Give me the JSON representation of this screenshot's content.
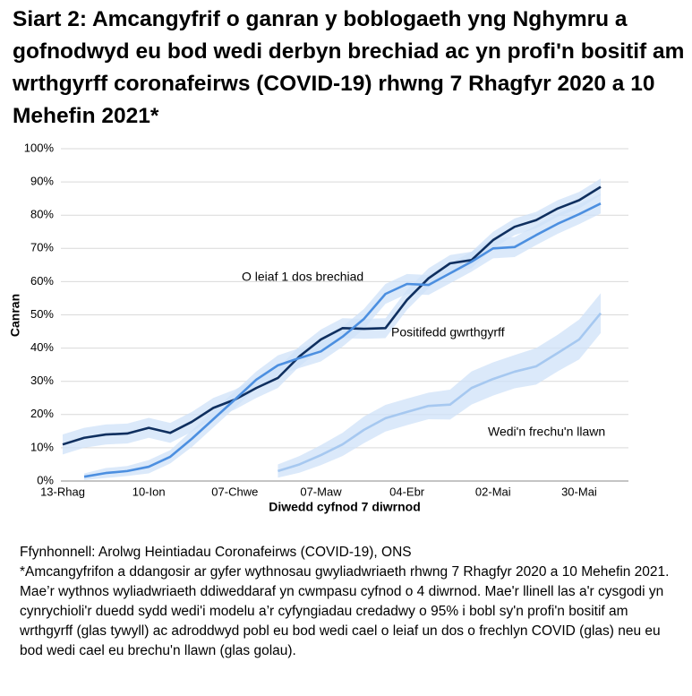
{
  "chart_data": {
    "type": "line",
    "title": "Siart 2: Amcangyfrif o ganran y boblogaeth yng Nghymru a gofnodwyd eu bod wedi derbyn brechiad ac yn profi'n bositif am wrthgyrff coronafeirws (COVID-19) rhwng 7 Rhagfyr 2020 a 10 Mehefin 2021*",
    "x_label": "Diwedd cyfnod 7 diwrnod",
    "y_label": "Canran",
    "categories": [
      "13-Rhag",
      null,
      null,
      null,
      "10-Ion",
      null,
      null,
      null,
      "07-Chwe",
      null,
      null,
      null,
      "07-Maw",
      null,
      null,
      null,
      "04-Ebr",
      null,
      null,
      null,
      "02-Mai",
      null,
      null,
      null,
      "30-Mai",
      null
    ],
    "series": [
      {
        "name": "Positifedd gwrthgyrff",
        "color": "#0f2f5f",
        "values": [
          11,
          13,
          14,
          14.3,
          16,
          14.5,
          17.8,
          22,
          24.5,
          28,
          31,
          37.5,
          42.6,
          46,
          45.8,
          46,
          54.5,
          61,
          65.5,
          66.5,
          72.5,
          76.5,
          78.5,
          82,
          84.5,
          88.5
        ],
        "ci": [
          3,
          3,
          3,
          3,
          3,
          3,
          3,
          3,
          3,
          3,
          3,
          3,
          3,
          3,
          3,
          3,
          3,
          3,
          2.5,
          2.5,
          2.5,
          2.5,
          2.5,
          2.5,
          2.5,
          2.5
        ]
      },
      {
        "name": "O leiaf 1 dos brechiad",
        "color": "#4c8fe0",
        "values": [
          null,
          1.3,
          2.4,
          3,
          4.3,
          7.3,
          12.7,
          18.6,
          24.5,
          30.5,
          34.8,
          37,
          39,
          43.4,
          48.8,
          56.3,
          59.3,
          59,
          62.5,
          66,
          70,
          70.4,
          74,
          77.4,
          80.3,
          83.5
        ],
        "ci": [
          null,
          1,
          1.5,
          1.5,
          2,
          2,
          2.5,
          2.5,
          2.5,
          2.5,
          3,
          3,
          3,
          3,
          3,
          3,
          3,
          3,
          3,
          3,
          3,
          3,
          3,
          3,
          3,
          3
        ]
      },
      {
        "name": "Wedi'n frechu'n llawn",
        "color": "#a6c8f0",
        "values": [
          null,
          null,
          null,
          null,
          null,
          null,
          null,
          null,
          null,
          null,
          3,
          5,
          7.8,
          11,
          15.4,
          18.9,
          20.8,
          22.6,
          23,
          28,
          30.7,
          32.9,
          34.5,
          38.5,
          42.6,
          50.5
        ],
        "ci": [
          null,
          null,
          null,
          null,
          null,
          null,
          null,
          null,
          null,
          null,
          2,
          2.5,
          3,
          3.5,
          4,
          4,
          4,
          4,
          4.5,
          5,
          5,
          5,
          5.5,
          5.5,
          6,
          6
        ]
      }
    ],
    "band_color": "#cfe1f8",
    "ylim": [
      0,
      100
    ],
    "yticks": [
      {
        "value": 0,
        "label": "0%"
      },
      {
        "value": 10,
        "label": "10%"
      },
      {
        "value": 20,
        "label": "20%"
      },
      {
        "value": 30,
        "label": "30%"
      },
      {
        "value": 40,
        "label": "40%"
      },
      {
        "value": 50,
        "label": "50%"
      },
      {
        "value": 60,
        "label": "60%"
      },
      {
        "value": 70,
        "label": "70%"
      },
      {
        "value": 80,
        "label": "80%"
      },
      {
        "value": 90,
        "label": "90%"
      },
      {
        "value": 100,
        "label": "100%"
      }
    ],
    "grid": true,
    "source": "Ffynhonnell: Arolwg Heintiadau Coronafeirws (COVID-19), ONS",
    "note": "*Amcangyfrifon a ddangosir ar gyfer wythnosau gwyliadwriaeth rhwng 7 Rhagfyr 2020 a 10 Mehefin 2021. Mae’r wythnos wyliadwriaeth ddiweddaraf yn cwmpasu cyfnod o 4 diwrnod. Mae'r llinell las a'r cysgodi yn cynrychioli'r duedd sydd wedi'i modelu a’r cyfyngiadau credadwy o 95% i bobl sy'n profi'n bositif am wrthgyrff (glas tywyll) ac adroddwyd pobl eu bod wedi cael o leiaf un dos o frechlyn COVID (glas) neu eu bod wedi cael eu brechu'n llawn (glas golau)."
  }
}
